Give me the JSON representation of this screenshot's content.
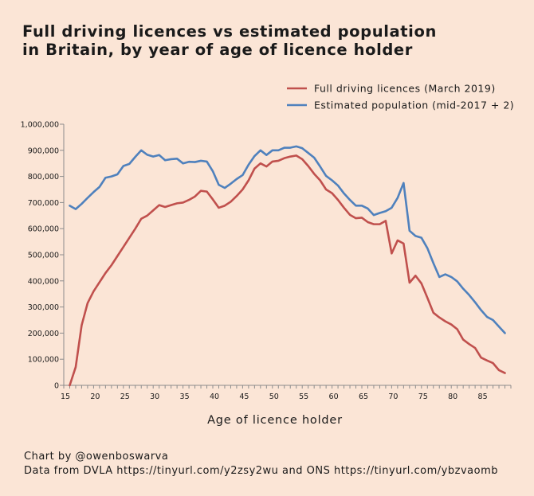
{
  "title_lines": [
    "Full driving licences vs estimated population",
    "in Britain, by year of age of licence holder"
  ],
  "footer": {
    "credit": "Chart by @owenboswarva",
    "source": "Data from DVLA https://tinyurl.com/y2zsy2wu and ONS https://tinyurl.com/ybzvaomb"
  },
  "chart_data": {
    "type": "line",
    "xlabel": "Age of licence holder",
    "ylabel": "",
    "xlim": [
      15,
      90
    ],
    "ylim": [
      0,
      1000000
    ],
    "x_ticks": [
      15,
      20,
      25,
      30,
      35,
      40,
      45,
      50,
      55,
      60,
      65,
      70,
      75,
      80,
      85
    ],
    "y_ticks": [
      0,
      100000,
      200000,
      300000,
      400000,
      500000,
      600000,
      700000,
      800000,
      900000,
      1000000
    ],
    "y_tick_labels": [
      "0",
      "100,000",
      "200,000",
      "300,000",
      "400,000",
      "500,000",
      "600,000",
      "700,000",
      "800,000",
      "900,000",
      "1,000,000"
    ],
    "grid": false,
    "legend": "top-right",
    "x": [
      16,
      17,
      18,
      19,
      20,
      21,
      22,
      23,
      24,
      25,
      26,
      27,
      28,
      29,
      30,
      31,
      32,
      33,
      34,
      35,
      36,
      37,
      38,
      39,
      40,
      41,
      42,
      43,
      44,
      45,
      46,
      47,
      48,
      49,
      50,
      51,
      52,
      53,
      54,
      55,
      56,
      57,
      58,
      59,
      60,
      61,
      62,
      63,
      64,
      65,
      66,
      67,
      68,
      69,
      70,
      71,
      72,
      73,
      74,
      75,
      76,
      77,
      78,
      79,
      80,
      81,
      82,
      83,
      84,
      85,
      86,
      87,
      88,
      89
    ],
    "series": [
      {
        "name": "Full driving licences (March 2019)",
        "color": "#c0504d",
        "values": [
          0,
          70000,
          230000,
          315000,
          360000,
          395000,
          430000,
          460000,
          495000,
          530000,
          565000,
          600000,
          638000,
          650000,
          670000,
          690000,
          683000,
          690000,
          697000,
          700000,
          710000,
          723000,
          745000,
          742000,
          712000,
          680000,
          688000,
          703000,
          725000,
          750000,
          785000,
          830000,
          850000,
          838000,
          857000,
          860000,
          870000,
          876000,
          880000,
          866000,
          840000,
          810000,
          785000,
          750000,
          736000,
          710000,
          680000,
          653000,
          640000,
          642000,
          625000,
          617000,
          617000,
          630000,
          505000,
          555000,
          543000,
          393000,
          420000,
          390000,
          335000,
          278000,
          260000,
          245000,
          233000,
          215000,
          175000,
          158000,
          143000,
          106000,
          95000,
          85000,
          58000,
          47000
        ]
      },
      {
        "name": "Estimated population (mid-2017 + 2)",
        "color": "#4f81bd",
        "values": [
          688000,
          675000,
          695000,
          718000,
          740000,
          760000,
          795000,
          800000,
          808000,
          840000,
          848000,
          875000,
          900000,
          883000,
          876000,
          882000,
          862000,
          866000,
          868000,
          850000,
          856000,
          855000,
          860000,
          857000,
          820000,
          768000,
          756000,
          772000,
          790000,
          805000,
          845000,
          878000,
          900000,
          882000,
          900000,
          900000,
          910000,
          910000,
          915000,
          908000,
          890000,
          872000,
          838000,
          802000,
          785000,
          765000,
          735000,
          710000,
          688000,
          688000,
          677000,
          652000,
          660000,
          667000,
          680000,
          718000,
          775000,
          592000,
          572000,
          565000,
          525000,
          468000,
          415000,
          425000,
          415000,
          398000,
          370000,
          346000,
          318000,
          288000,
          262000,
          250000,
          225000,
          200000
        ]
      }
    ]
  }
}
